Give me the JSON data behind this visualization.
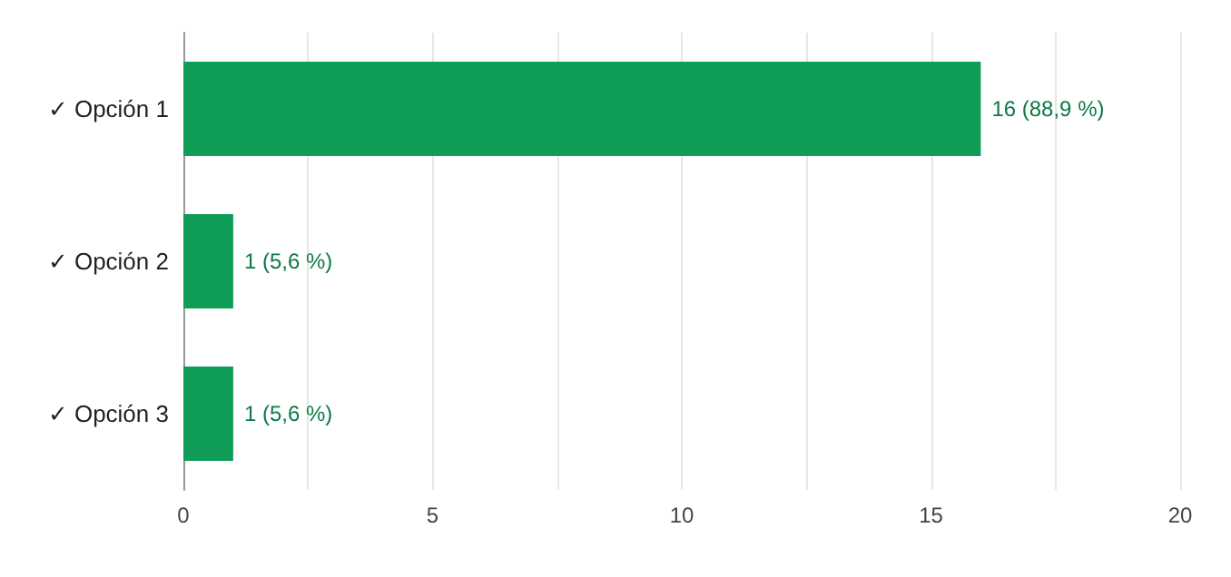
{
  "chart_data": {
    "type": "bar",
    "orientation": "horizontal",
    "categories": [
      "✓ Opción 1",
      "✓ Opción 2",
      "✓ Opción 3"
    ],
    "values": [
      16,
      1,
      1
    ],
    "color": "#0f9d58",
    "value_labels": [
      "16 (88,9 %)",
      "1 (5,6 %)",
      "1 (5,6 %)"
    ],
    "xlim": [
      0,
      20
    ],
    "xticks": [
      0,
      {
        "value": 2.5,
        "label": null
      },
      5,
      {
        "value": 7.5,
        "label": null
      },
      10,
      {
        "value": 12.5,
        "label": null
      },
      15,
      {
        "value": 17.5,
        "label": null
      },
      20
    ],
    "grid": "x"
  }
}
